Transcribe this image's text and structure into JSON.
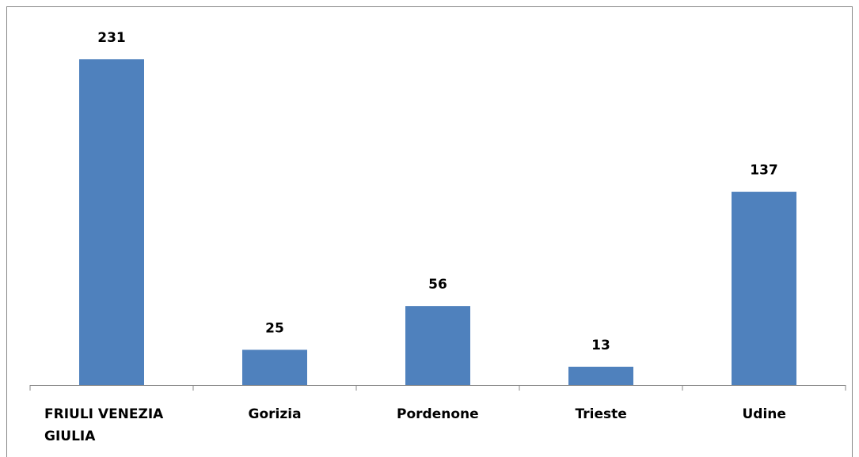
{
  "chart_data": {
    "type": "bar",
    "categories": [
      "FRIULI VENEZIA GIULIA",
      "Gorizia",
      "Pordenone",
      "Trieste",
      "Udine"
    ],
    "values": [
      231,
      25,
      56,
      13,
      137
    ],
    "color": "#4f81bd"
  }
}
